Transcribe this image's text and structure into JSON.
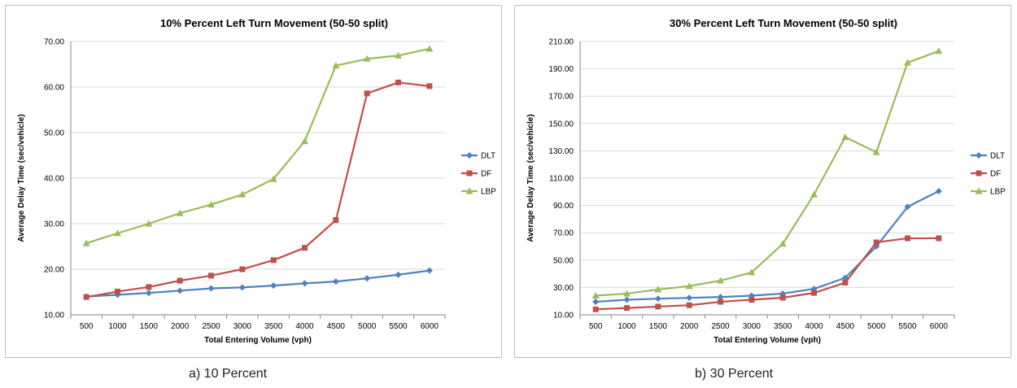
{
  "colors": {
    "DLT": "#4f81bd",
    "DF": "#c0504d",
    "LBP": "#9bbb59",
    "grid": "#d9d9d9"
  },
  "captions": {
    "a": "a) 10 Percent",
    "b": "b) 30 Percent"
  },
  "chart_data": [
    {
      "type": "line",
      "title": "10% Percent Left Turn Movement (50-50 split)",
      "xlabel": "Total Entering Volume (vph)",
      "ylabel": "Average Delay Time  (sec/vehicle)",
      "x": [
        "500",
        "1000",
        "1500",
        "2000",
        "2500",
        "3000",
        "3500",
        "4000",
        "4500",
        "5000",
        "5500",
        "6000"
      ],
      "ylim": [
        10,
        70
      ],
      "yticks": [
        "10.00",
        "20.00",
        "30.00",
        "40.00",
        "50.00",
        "60.00",
        "70.00"
      ],
      "grid": true,
      "legend": "right",
      "series": [
        {
          "name": "DLT",
          "marker": "diamond",
          "values": [
            14.0,
            14.4,
            14.8,
            15.3,
            15.8,
            16.0,
            16.4,
            16.9,
            17.3,
            18.0,
            18.8,
            19.7
          ]
        },
        {
          "name": "DF",
          "marker": "square",
          "values": [
            13.9,
            15.1,
            16.1,
            17.5,
            18.6,
            20.0,
            22.0,
            24.7,
            30.8,
            58.6,
            61.0,
            60.2
          ]
        },
        {
          "name": "LBP",
          "marker": "triangle",
          "values": [
            25.7,
            27.9,
            30.0,
            32.3,
            34.2,
            36.4,
            39.8,
            48.1,
            64.7,
            66.2,
            66.9,
            68.4
          ]
        }
      ]
    },
    {
      "type": "line",
      "title": "30% Percent Left Turn Movement (50-50 split)",
      "xlabel": "Total Entering Volume (vph)",
      "ylabel": "Average Delay Time  (sec/vehicle)",
      "x": [
        "500",
        "1000",
        "1500",
        "2000",
        "2500",
        "3000",
        "3500",
        "4000",
        "4500",
        "5000",
        "5500",
        "6000"
      ],
      "ylim": [
        10,
        210
      ],
      "yticks": [
        "10.00",
        "30.00",
        "50.00",
        "70.00",
        "90.00",
        "110.00",
        "130.00",
        "150.00",
        "170.00",
        "190.00",
        "210.00"
      ],
      "grid": true,
      "legend": "right",
      "series": [
        {
          "name": "DLT",
          "marker": "diamond",
          "values": [
            19.5,
            21.0,
            21.8,
            22.4,
            23.0,
            24.0,
            25.5,
            29.0,
            37.0,
            60.0,
            89.0,
            100.5
          ]
        },
        {
          "name": "DF",
          "marker": "square",
          "values": [
            14.0,
            15.0,
            16.0,
            17.0,
            19.5,
            21.0,
            22.5,
            26.0,
            33.5,
            63.0,
            66.0,
            66.0
          ]
        },
        {
          "name": "LBP",
          "marker": "triangle",
          "values": [
            24.0,
            25.5,
            28.5,
            31.0,
            35.0,
            41.0,
            62.0,
            98.0,
            140.0,
            129.0,
            194.5,
            203.0
          ]
        }
      ]
    }
  ]
}
